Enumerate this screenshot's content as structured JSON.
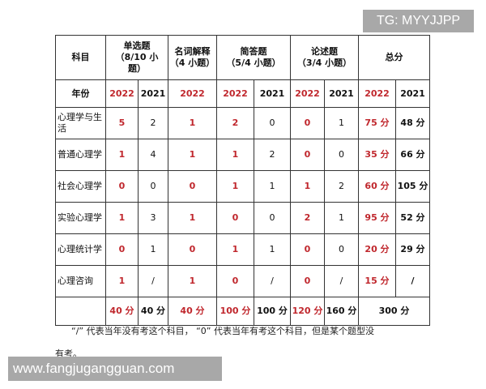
{
  "watermark_top": "TG: MYYJJPP",
  "watermark_bottom": "www.fangjugangguan.com",
  "colors": {
    "highlight_2022": "#c0272d",
    "border": "#333333",
    "watermark_bg": "#a8a8a8"
  },
  "table": {
    "headers": {
      "subject": "科目",
      "single_choice": "单选题\n（8/10 小\n题）",
      "term": "名词解释\n（4 小题）",
      "short_answer": "简答题\n（5/4 小题）",
      "essay": "论述题\n（3/4 小题）",
      "total": "总分"
    },
    "year_row": [
      "年份",
      "2022",
      "2021",
      "2022",
      "2022",
      "2021",
      "2022",
      "2021",
      "2022",
      "2021"
    ],
    "rows": [
      [
        "心理学与生活",
        "5",
        "2",
        "1",
        "2",
        "0",
        "0",
        "1",
        "75 分",
        "48 分"
      ],
      [
        "普通心理学",
        "1",
        "4",
        "1",
        "1",
        "2",
        "0",
        "0",
        "35 分",
        "66 分"
      ],
      [
        "社会心理学",
        "0",
        "0",
        "0",
        "1",
        "1",
        "1",
        "2",
        "60 分",
        "105 分"
      ],
      [
        "实验心理学",
        "1",
        "3",
        "1",
        "0",
        "0",
        "2",
        "1",
        "95 分",
        "52 分"
      ],
      [
        "心理统计学",
        "0",
        "1",
        "0",
        "1",
        "1",
        "0",
        "0",
        "20 分",
        "29 分"
      ],
      [
        "心理咨询",
        "1",
        "/",
        "1",
        "0",
        "/",
        "0",
        "/",
        "15 分",
        "/"
      ]
    ],
    "totals": [
      "",
      "40 分",
      "40 分",
      "40 分",
      "100 分",
      "100 分",
      "120 分",
      "160 分",
      "300 分"
    ]
  },
  "footnote_line1": "“/” 代表当年没有考这个科目， “0” 代表当年有考这个科目，但是某个题型没",
  "footnote_line2": "有考。"
}
